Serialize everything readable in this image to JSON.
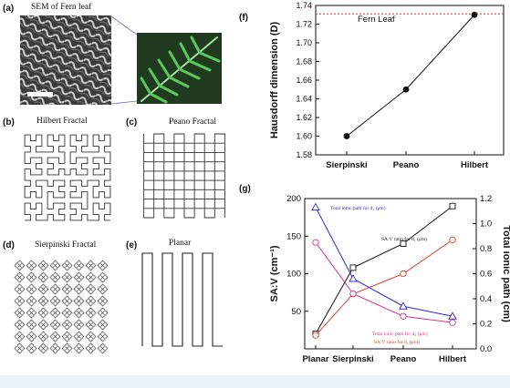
{
  "panels": {
    "a": {
      "letter": "(a)",
      "caption": "SEM of Fern leaf"
    },
    "b": {
      "letter": "(b)",
      "caption": "Hilbert Fractal"
    },
    "c": {
      "letter": "(c)",
      "caption": "Peano Fractal"
    },
    "d": {
      "letter": "(d)",
      "caption": "Sierpinski Fractal"
    },
    "e": {
      "letter": "(e)",
      "caption": "Planar"
    },
    "f": {
      "letter": "(f)"
    },
    "g": {
      "letter": "(g)"
    }
  },
  "colors": {
    "black": "#111111",
    "blue": "#2b2bd6",
    "pink": "#e0338a",
    "red": "#e0402a",
    "dotted_red": "#e03030",
    "fern_green": "#3aa83a",
    "bottom_strip": "#e9f3f9"
  },
  "chart_data": [
    {
      "type": "line",
      "panel": "f",
      "categories": [
        "Sierpinski",
        "Peano",
        "Hilbert"
      ],
      "series": [
        {
          "values": [
            1.6,
            1.65,
            1.73
          ]
        }
      ],
      "reference_line": {
        "value": 1.731,
        "label": "Fern Leaf"
      },
      "ylabel": "Hausdorff dimension (D)",
      "xlabel": "",
      "ylim": [
        1.58,
        1.74
      ],
      "yticks": [
        "1.58",
        "1.60",
        "1.62",
        "1.64",
        "1.66",
        "1.68",
        "1.70",
        "1.72",
        "1.74"
      ],
      "grid": false
    },
    {
      "type": "line",
      "panel": "g",
      "categories": [
        "Planar",
        "Sierpinski",
        "Peano",
        "Hilbert"
      ],
      "ylabel_left": "SA:V (cm⁻¹)",
      "ylabel_right": "Total ionic path (cm)",
      "ylim_left": [
        0,
        200
      ],
      "ylim_right": [
        0,
        1.2
      ],
      "yticks_left": [
        "50",
        "100",
        "150",
        "200"
      ],
      "yticks_right": [
        "0.0",
        "0.2",
        "0.4",
        "0.6",
        "0.8",
        "1.0",
        "1.2"
      ],
      "series": [
        {
          "name": "SA:V ratio for d₁ (μm)",
          "axis": "left",
          "marker": "square",
          "values": [
            20,
            108,
            140,
            190
          ]
        },
        {
          "name": "SA:V ratio for d₂ (μm)",
          "axis": "left",
          "marker": "circle",
          "values": [
            18,
            73,
            100,
            145
          ]
        },
        {
          "name": "Total ionic path for d₁ (μm)",
          "axis": "right",
          "marker": "triangle",
          "values": [
            1.13,
            0.56,
            0.34,
            0.26
          ]
        },
        {
          "name": "Total ionic path for d₂ (μm)",
          "axis": "right",
          "marker": "circle",
          "values": [
            0.85,
            0.44,
            0.26,
            0.21
          ]
        }
      ],
      "grid": false,
      "legend": "inside-plot"
    }
  ]
}
